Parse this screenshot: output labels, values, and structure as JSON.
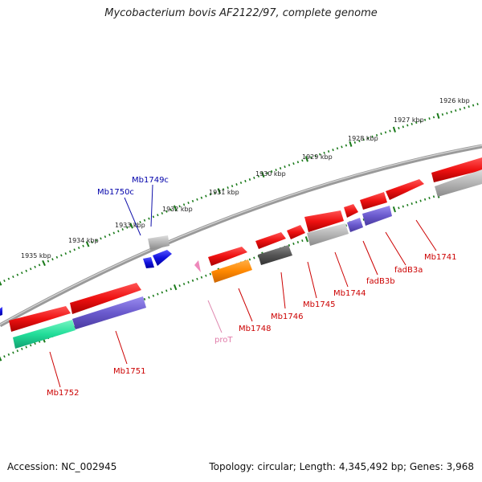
{
  "title": "Mycobacterium bovis AF2122/97, complete genome",
  "footer": {
    "accession": "Accession: NC_002945",
    "summary": "Topology: circular; Length: 4,345,492 bp; Genes: 3,968"
  },
  "kbp_labels": [
    "1926 kbp",
    "1927 kbp",
    "1928 kbp",
    "1929 kbp",
    "1930 kbp",
    "1931 kbp",
    "1932 kbp",
    "1933 kbp",
    "1934 kbp",
    "1935 kbp"
  ],
  "gene_labels": {
    "Mb1749c": "Mb1749c",
    "Mb1750c": "Mb1750c",
    "proT": "proT",
    "Mb1748": "Mb1748",
    "Mb1746": "Mb1746",
    "Mb1745": "Mb1745",
    "Mb1744": "Mb1744",
    "fadB3b": "fadB3b",
    "fadB3a": "fadB3a",
    "Mb1741": "Mb1741",
    "Mb1751": "Mb1751",
    "Mb1752": "Mb1752"
  },
  "colors": {
    "cds": "#ee1111",
    "gene_grey": "#b0b0b0",
    "dark_grey": "#555555",
    "orange": "#ff8800",
    "purple": "#6a5acd",
    "teal": "#22dd99",
    "blue": "#1111dd",
    "pink": "#ee88bb",
    "backbone": "#888888",
    "tick": "#1a7a1a",
    "red_label": "#cc0000",
    "blue_label": "#0000aa",
    "pink_label": "#e07aa8"
  }
}
